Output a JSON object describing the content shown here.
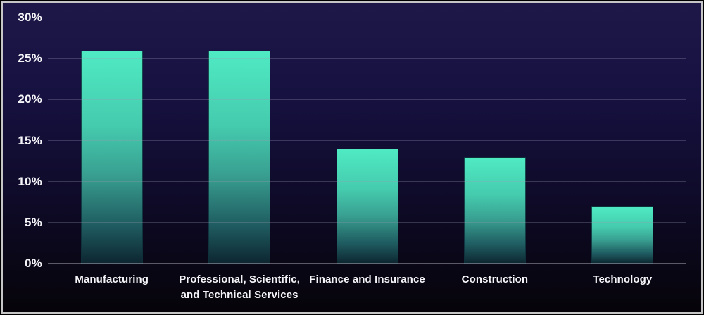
{
  "chart_data": {
    "type": "bar",
    "title": "",
    "xlabel": "",
    "ylabel": "",
    "categories": [
      "Manufacturing",
      "Professional, Scientific,\nand Technical Services",
      "Finance and Insurance",
      "Construction",
      "Technology"
    ],
    "values": [
      26,
      26,
      14,
      13,
      7
    ],
    "value_unit": "%",
    "ylim": [
      0,
      30
    ],
    "ytick_step": 5,
    "ytick_labels": [
      "0%",
      "5%",
      "10%",
      "15%",
      "20%",
      "25%",
      "30%"
    ],
    "grid": true,
    "gridlines_over_bars": true,
    "legend": false,
    "colors": {
      "bar_gradient_top": "#4feac3",
      "bar_gradient_bottom": "#0d2630",
      "background_top": "#1e1848",
      "background_bottom": "#060409",
      "gridline": "#3b3553",
      "axis_line": "#6f6b7a",
      "label_text": "#f5f4f8",
      "frame_outer": "#000000",
      "frame_inner": "#c6c6c6"
    }
  }
}
